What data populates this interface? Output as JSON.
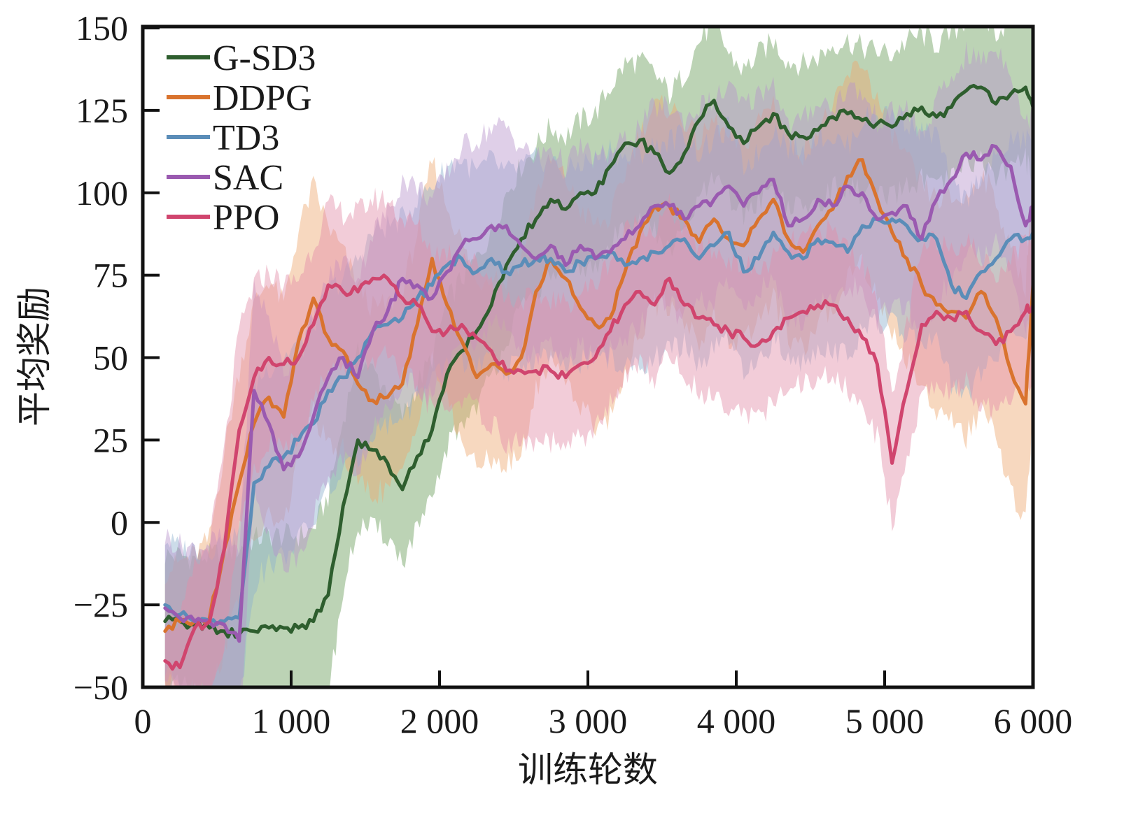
{
  "chart_data": {
    "type": "line",
    "title": "",
    "xlabel": "训练轮数",
    "ylabel": "平均奖励",
    "xlim": [
      0,
      6000
    ],
    "ylim": [
      -50,
      150
    ],
    "xticks": [
      0,
      1000,
      2000,
      3000,
      4000,
      5000,
      6000
    ],
    "xtick_labels": [
      "0",
      "1 000",
      "2 000",
      "3 000",
      "4 000",
      "5 000",
      "6 000"
    ],
    "yticks": [
      -50,
      -25,
      0,
      25,
      50,
      75,
      100,
      125,
      150
    ],
    "ytick_labels": [
      "−50",
      "−25",
      "0",
      "25",
      "50",
      "75",
      "100",
      "125",
      "150"
    ],
    "grid": false,
    "legend_position": "top-left",
    "x": [
      150,
      250,
      350,
      450,
      550,
      650,
      750,
      850,
      950,
      1050,
      1150,
      1250,
      1350,
      1450,
      1550,
      1650,
      1750,
      1850,
      1950,
      2050,
      2150,
      2250,
      2350,
      2450,
      2550,
      2650,
      2750,
      2850,
      2950,
      3050,
      3150,
      3250,
      3350,
      3450,
      3550,
      3650,
      3750,
      3850,
      3950,
      4050,
      4150,
      4250,
      4350,
      4450,
      4550,
      4650,
      4750,
      4850,
      4950,
      5050,
      5150,
      5250,
      5350,
      5450,
      5550,
      5650,
      5750,
      5850,
      5950,
      6000
    ],
    "series": [
      {
        "name": "G-SD3",
        "color": "#2e5e2e",
        "band_color": "#6a9e5a",
        "values": [
          -30,
          -30,
          -31,
          -32,
          -33,
          -34,
          -33,
          -32,
          -32,
          -32,
          -30,
          -22,
          5,
          25,
          22,
          18,
          10,
          20,
          28,
          45,
          52,
          58,
          66,
          78,
          86,
          92,
          98,
          95,
          100,
          100,
          108,
          115,
          116,
          112,
          106,
          112,
          122,
          128,
          120,
          115,
          120,
          124,
          118,
          117,
          119,
          123,
          124,
          122,
          121,
          120,
          124,
          126,
          123,
          126,
          131,
          132,
          127,
          130,
          132,
          126
        ],
        "std": [
          20,
          20,
          20,
          22,
          24,
          26,
          28,
          28,
          28,
          28,
          28,
          30,
          26,
          26,
          24,
          22,
          22,
          22,
          22,
          22,
          22,
          22,
          22,
          22,
          22,
          22,
          22,
          22,
          22,
          24,
          24,
          24,
          24,
          24,
          24,
          24,
          24,
          24,
          22,
          22,
          22,
          22,
          22,
          22,
          22,
          22,
          22,
          22,
          22,
          22,
          22,
          22,
          22,
          22,
          22,
          22,
          22,
          22,
          22,
          22
        ]
      },
      {
        "name": "DDPG",
        "color": "#d9732e",
        "band_color": "#eea970",
        "values": [
          -33,
          -30,
          -30,
          -29,
          -8,
          12,
          30,
          38,
          32,
          55,
          68,
          56,
          52,
          42,
          37,
          38,
          42,
          60,
          80,
          66,
          55,
          44,
          48,
          45,
          50,
          70,
          80,
          74,
          65,
          60,
          62,
          76,
          88,
          96,
          96,
          92,
          85,
          92,
          86,
          84,
          92,
          98,
          86,
          82,
          90,
          95,
          105,
          110,
          98,
          88,
          80,
          72,
          66,
          64,
          62,
          70,
          62,
          46,
          36,
          72
        ],
        "std": [
          18,
          18,
          20,
          24,
          30,
          34,
          36,
          36,
          34,
          34,
          34,
          34,
          30,
          30,
          28,
          28,
          28,
          28,
          30,
          30,
          30,
          28,
          28,
          28,
          30,
          30,
          30,
          30,
          30,
          30,
          30,
          30,
          30,
          30,
          30,
          30,
          30,
          30,
          30,
          30,
          30,
          30,
          30,
          30,
          30,
          30,
          30,
          30,
          30,
          30,
          30,
          30,
          32,
          34,
          36,
          36,
          36,
          36,
          36,
          36
        ]
      },
      {
        "name": "TD3",
        "color": "#5b8db8",
        "band_color": "#8fb1cf",
        "values": [
          -25,
          -28,
          -30,
          -30,
          -30,
          -29,
          12,
          17,
          20,
          25,
          30,
          40,
          44,
          50,
          58,
          60,
          62,
          68,
          72,
          78,
          80,
          76,
          80,
          76,
          78,
          80,
          80,
          76,
          79,
          80,
          82,
          78,
          80,
          82,
          84,
          86,
          80,
          84,
          88,
          76,
          80,
          88,
          82,
          80,
          86,
          85,
          82,
          90,
          92,
          92,
          90,
          86,
          86,
          72,
          68,
          76,
          80,
          86,
          86,
          88
        ],
        "std": [
          20,
          20,
          22,
          22,
          24,
          26,
          30,
          30,
          30,
          30,
          30,
          30,
          30,
          30,
          30,
          30,
          30,
          30,
          30,
          30,
          30,
          30,
          30,
          30,
          30,
          30,
          30,
          30,
          30,
          30,
          32,
          32,
          32,
          32,
          32,
          32,
          32,
          32,
          32,
          32,
          32,
          32,
          32,
          32,
          32,
          32,
          32,
          32,
          32,
          32,
          32,
          32,
          32,
          30,
          30,
          30,
          30,
          30,
          30,
          30
        ]
      },
      {
        "name": "SAC",
        "color": "#9a5ab0",
        "band_color": "#b894cc",
        "values": [
          -26,
          -29,
          -30,
          -30,
          -31,
          -36,
          40,
          30,
          16,
          20,
          32,
          44,
          50,
          44,
          58,
          64,
          74,
          72,
          68,
          76,
          84,
          86,
          90,
          90,
          84,
          80,
          84,
          78,
          84,
          80,
          82,
          86,
          90,
          96,
          96,
          92,
          96,
          98,
          102,
          96,
          100,
          104,
          90,
          92,
          98,
          96,
          102,
          100,
          92,
          94,
          96,
          86,
          98,
          104,
          112,
          110,
          114,
          108,
          90,
          96
        ],
        "std": [
          22,
          22,
          22,
          24,
          26,
          28,
          32,
          32,
          30,
          30,
          30,
          30,
          30,
          30,
          30,
          30,
          30,
          30,
          30,
          30,
          30,
          30,
          30,
          30,
          30,
          30,
          30,
          30,
          30,
          30,
          30,
          30,
          30,
          30,
          30,
          30,
          30,
          30,
          30,
          30,
          30,
          30,
          30,
          30,
          30,
          30,
          30,
          30,
          30,
          30,
          30,
          30,
          30,
          30,
          30,
          30,
          30,
          30,
          30,
          30
        ]
      },
      {
        "name": "PPO",
        "color": "#d0456e",
        "band_color": "#e28ea8",
        "values": [
          -42,
          -44,
          -32,
          -30,
          -8,
          28,
          44,
          50,
          48,
          50,
          60,
          72,
          70,
          70,
          74,
          74,
          68,
          66,
          58,
          58,
          60,
          56,
          52,
          46,
          46,
          46,
          46,
          44,
          48,
          50,
          58,
          66,
          70,
          66,
          74,
          66,
          62,
          60,
          58,
          56,
          54,
          58,
          62,
          64,
          66,
          66,
          62,
          56,
          48,
          18,
          40,
          60,
          64,
          62,
          64,
          58,
          54,
          58,
          64,
          66
        ],
        "std": [
          14,
          14,
          18,
          24,
          30,
          30,
          28,
          26,
          24,
          24,
          24,
          24,
          24,
          24,
          24,
          24,
          24,
          24,
          24,
          24,
          22,
          22,
          22,
          22,
          22,
          22,
          22,
          22,
          22,
          22,
          22,
          22,
          22,
          22,
          22,
          22,
          22,
          22,
          22,
          22,
          22,
          22,
          22,
          22,
          22,
          22,
          22,
          22,
          22,
          18,
          20,
          22,
          22,
          22,
          22,
          22,
          22,
          22,
          22,
          22
        ]
      }
    ]
  }
}
